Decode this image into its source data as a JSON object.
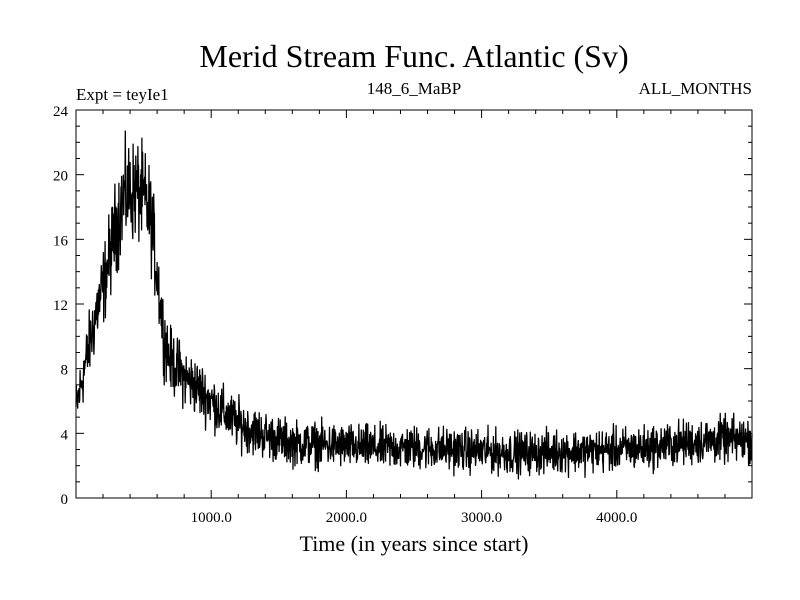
{
  "chart_data": {
    "type": "line",
    "title": "Merid Stream Func. Atlantic (Sv)",
    "subtitle_left": "Expt = teyIe1",
    "subtitle_center": "148_6_MaBP",
    "subtitle_right": "ALL_MONTHS",
    "xlabel": "Time (in years since start)",
    "ylabel": "",
    "xlim": [
      0,
      5000
    ],
    "ylim": [
      0,
      24
    ],
    "x_ticks": [
      1000,
      2000,
      3000,
      4000
    ],
    "x_tick_labels": [
      "1000.0",
      "2000.0",
      "3000.0",
      "4000.0"
    ],
    "y_ticks": [
      0,
      4,
      8,
      12,
      16,
      20,
      24
    ],
    "y_tick_labels": [
      "0",
      "4",
      "8",
      "12",
      "16",
      "20",
      "24"
    ],
    "grid": false,
    "line_color": "#000000",
    "series": [
      {
        "name": "Merid Stream Func. Atlantic",
        "x": [
          0,
          50,
          100,
          150,
          200,
          250,
          300,
          350,
          400,
          450,
          500,
          550,
          600,
          650,
          700,
          800,
          900,
          1000,
          1100,
          1200,
          1300,
          1400,
          1500,
          1600,
          1800,
          2000,
          2200,
          2400,
          2600,
          2800,
          3000,
          3200,
          3400,
          3600,
          3800,
          4000,
          4200,
          4400,
          4600,
          4800,
          5000
        ],
        "values": [
          5.5,
          7.5,
          9.5,
          11.5,
          13.0,
          15.0,
          17.0,
          18.5,
          19.0,
          19.0,
          18.5,
          17.5,
          14.0,
          10.0,
          8.5,
          7.5,
          6.8,
          6.0,
          5.2,
          4.6,
          4.2,
          3.9,
          3.6,
          3.4,
          3.3,
          3.2,
          3.1,
          3.1,
          3.1,
          3.0,
          2.9,
          2.8,
          2.8,
          2.9,
          2.9,
          3.0,
          3.1,
          3.3,
          3.5,
          3.6,
          3.6
        ],
        "noise_amplitude": 1.1
      }
    ]
  }
}
